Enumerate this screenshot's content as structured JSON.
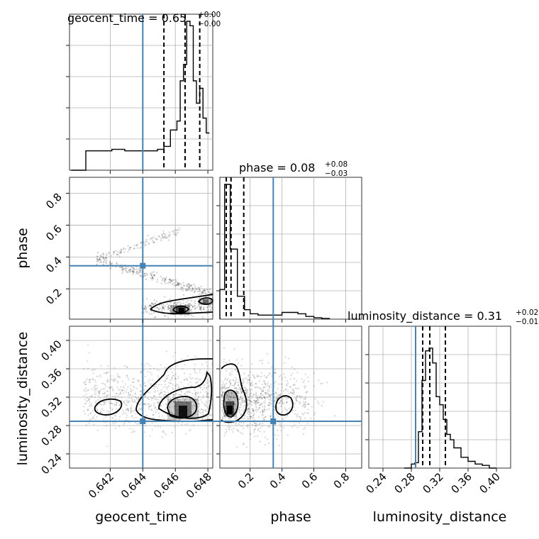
{
  "chart_data": {
    "type": "corner",
    "parameters": [
      "geocent_time",
      "phase",
      "luminosity_distance"
    ],
    "truths": {
      "geocent_time": 0.644,
      "phase": 0.345,
      "luminosity_distance": 0.286
    },
    "truth_color": "#4682b4",
    "axes": {
      "geocent_time": {
        "range": [
          0.6395,
          0.6483
        ],
        "ticks": [
          0.642,
          0.644,
          0.646,
          0.648
        ],
        "tick_labels": [
          "0.642",
          "0.644",
          "0.646",
          "0.648"
        ]
      },
      "phase": {
        "range": [
          0.01,
          0.9
        ],
        "ticks": [
          0.2,
          0.4,
          0.6,
          0.8
        ],
        "tick_labels": [
          "0.2",
          "0.4",
          "0.6",
          "0.8"
        ]
      },
      "luminosity_distance": {
        "range": [
          0.22,
          0.42
        ],
        "ticks": [
          0.24,
          0.28,
          0.32,
          0.36,
          0.4
        ],
        "tick_labels": [
          "0.24",
          "0.28",
          "0.32",
          "0.36",
          "0.40"
        ]
      }
    },
    "titles": {
      "geocent_time": {
        "label": "geocent_time = 0.65",
        "plus": "+0.00",
        "minus": "−0.00"
      },
      "phase": {
        "label": "phase = 0.08",
        "plus": "+0.08",
        "minus": "−0.03"
      },
      "luminosity_distance": {
        "label": "luminosity_distance = 0.31",
        "plus": "+0.02",
        "minus": "−0.01"
      }
    },
    "quantiles": {
      "geocent_time": [
        0.6453,
        0.6466,
        0.6475
      ],
      "phase": [
        0.05,
        0.08,
        0.16
      ],
      "luminosity_distance": [
        0.296,
        0.306,
        0.328
      ]
    },
    "histograms": {
      "geocent_time": {
        "edges": [
          0.6396,
          0.6405,
          0.6409,
          0.6413,
          0.6417,
          0.6421,
          0.6425,
          0.6429,
          0.6433,
          0.6437,
          0.6441,
          0.6445,
          0.6449,
          0.6453,
          0.6457,
          0.6461,
          0.6463,
          0.6465,
          0.6467,
          0.6469,
          0.6471,
          0.6473,
          0.6475,
          0.6477,
          0.6479,
          0.6481
        ],
        "counts": [
          0,
          0.13,
          0.13,
          0.13,
          0.13,
          0.14,
          0.14,
          0.13,
          0.13,
          0.13,
          0.13,
          0.13,
          0.14,
          0.16,
          0.27,
          0.33,
          0.6,
          0.71,
          1.0,
          0.97,
          0.6,
          0.45,
          0.55,
          0.35,
          0.25
        ]
      },
      "phase": {
        "edges": [
          0.01,
          0.04,
          0.075,
          0.12,
          0.165,
          0.2,
          0.25,
          0.3,
          0.35,
          0.4,
          0.45,
          0.5,
          0.55,
          0.6,
          0.65,
          0.7
        ],
        "counts": [
          0.22,
          1.0,
          0.52,
          0.17,
          0.07,
          0.04,
          0.03,
          0.03,
          0.03,
          0.05,
          0.05,
          0.04,
          0.02,
          0.01,
          0.005
        ]
      },
      "luminosity_distance": {
        "edges": [
          0.27,
          0.28,
          0.285,
          0.29,
          0.295,
          0.3,
          0.305,
          0.31,
          0.315,
          0.32,
          0.325,
          0.33,
          0.335,
          0.34,
          0.35,
          0.36,
          0.37,
          0.38,
          0.39,
          0.4
        ],
        "counts": [
          0,
          0.03,
          0.04,
          0.27,
          0.65,
          0.87,
          0.89,
          0.78,
          0.53,
          0.47,
          0.36,
          0.25,
          0.21,
          0.15,
          0.08,
          0.05,
          0.03,
          0.02,
          0
        ]
      }
    }
  }
}
